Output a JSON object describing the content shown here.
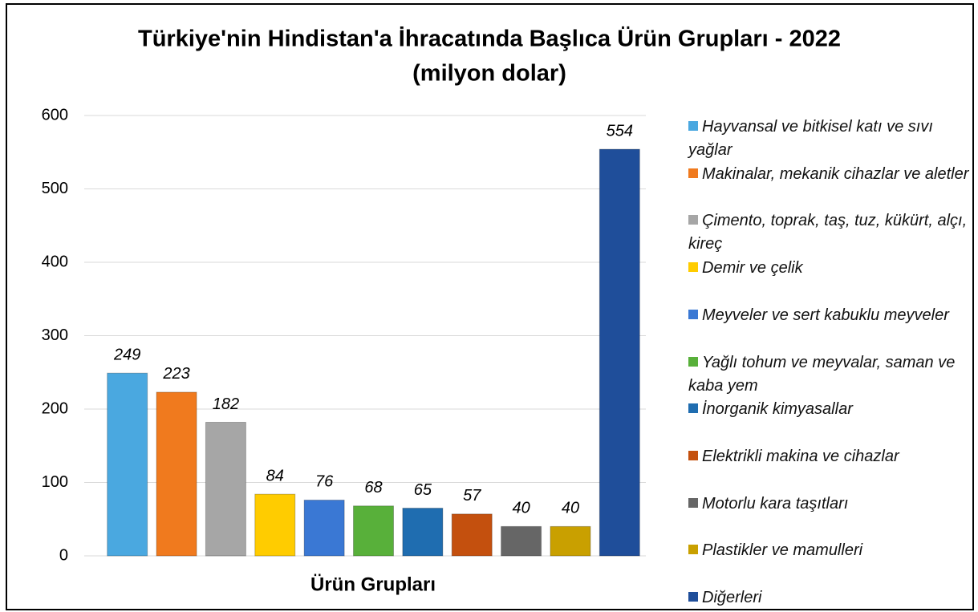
{
  "chart_data": {
    "type": "bar",
    "title": "Türkiye'nin Hindistan'a İhracatında Başlıca Ürün Grupları - 2022",
    "subtitle": "(milyon dolar)",
    "xlabel": "Ürün Grupları",
    "categories": [
      "Hayvansal ve bitkisel katı ve sıvı yağlar",
      "Makinalar, mekanik cihazlar ve aletler",
      "Çimento, toprak, taş, tuz, kükürt, alçı, kireç",
      "Demir ve çelik",
      "Meyveler ve sert kabuklu meyveler",
      "Yağlı tohum ve meyvalar, saman ve kaba yem",
      "İnorganik kimyasallar",
      "Elektrikli makina ve cihazlar",
      "Motorlu kara taşıtları",
      "Plastikler ve mamulleri",
      "Diğerleri"
    ],
    "values": [
      249,
      223,
      182,
      84,
      76,
      68,
      65,
      57,
      40,
      40,
      554
    ],
    "colors": [
      "#4aa8e0",
      "#f07a1e",
      "#a6a6a6",
      "#ffcc00",
      "#3a78d4",
      "#58b03a",
      "#1f6db0",
      "#c4500e",
      "#666666",
      "#c9a000",
      "#1f4e9a"
    ],
    "ylim": [
      0,
      600
    ],
    "yticks": [
      0,
      100,
      200,
      300,
      400,
      500,
      600
    ],
    "grid": true,
    "legend": "right"
  }
}
